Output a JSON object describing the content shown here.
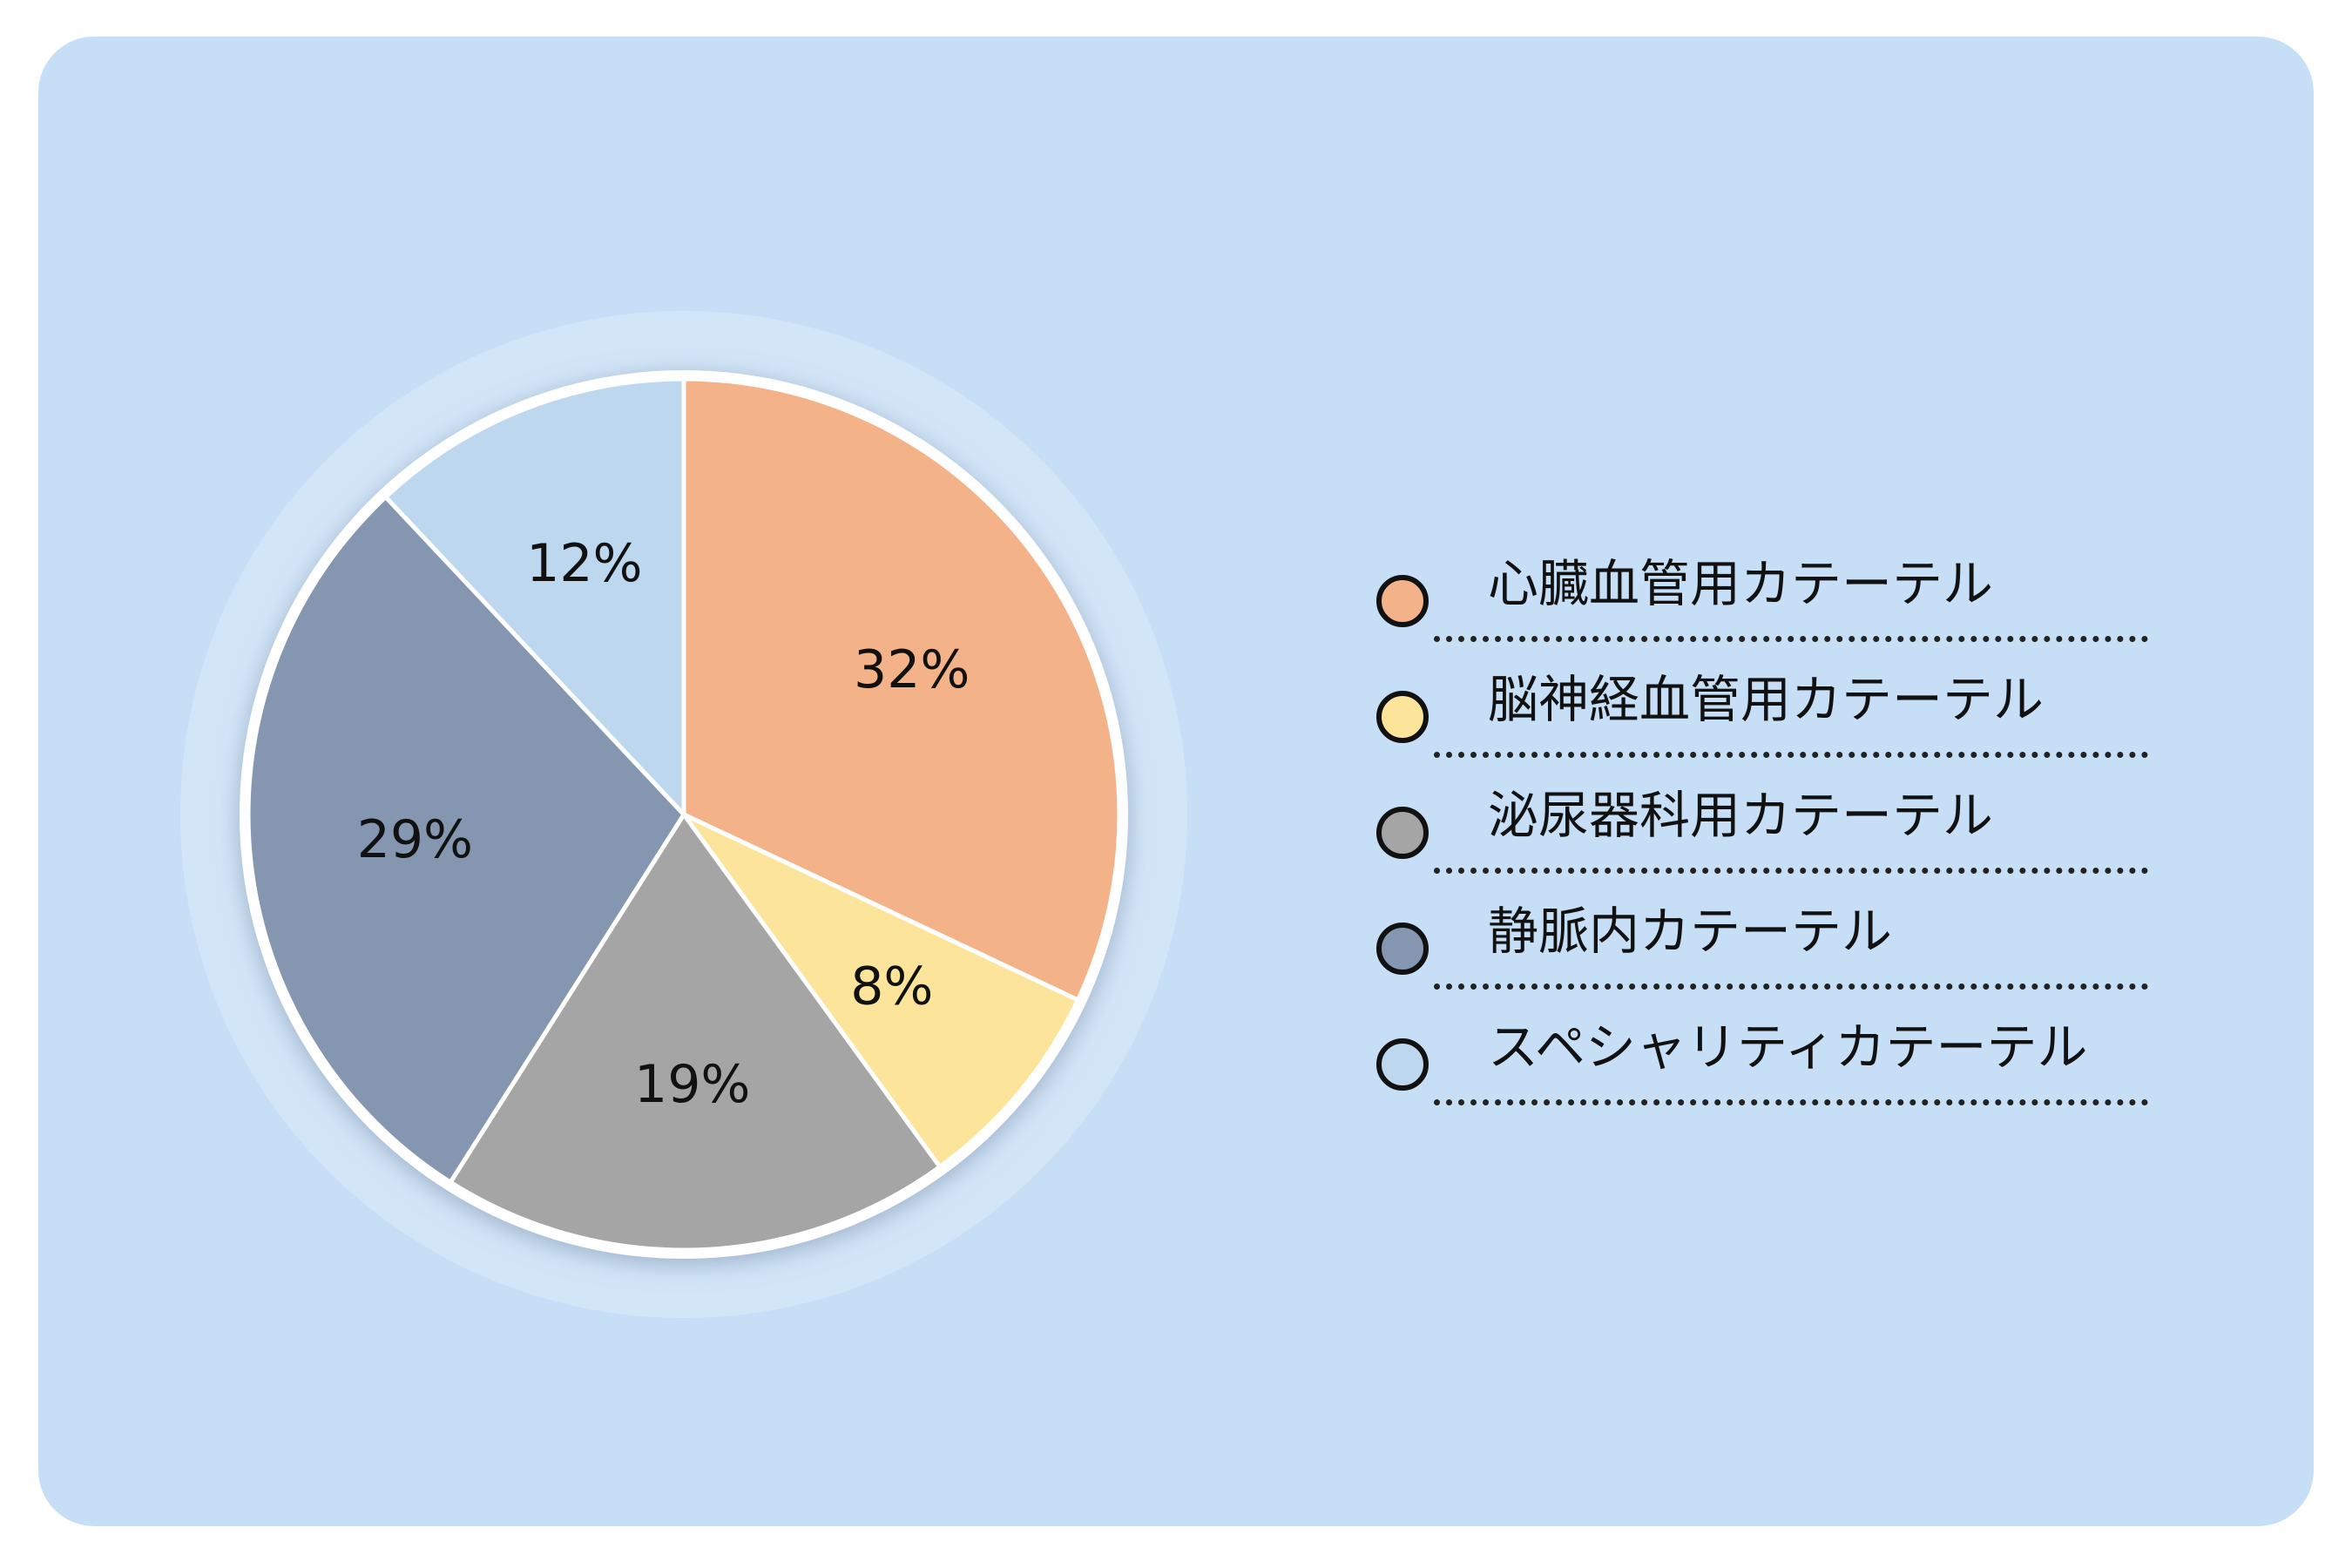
{
  "chart_data": {
    "type": "pie",
    "categories": [
      "心臓血管用カテーテル",
      "脳神経血管用カテーテル",
      "泌尿器科用カテーテル",
      "静脈内カテーテル",
      "スペシャリティカテーテル"
    ],
    "values": [
      32,
      8,
      19,
      29,
      12
    ],
    "labels": [
      "32%",
      "8%",
      "19%",
      "29%",
      "12%"
    ],
    "colors": [
      "#f3b287",
      "#fde49b",
      "#a5a5a5",
      "#8496b0",
      "#bdd7ee"
    ],
    "unit": "%",
    "start_angle": "12 o'clock",
    "direction": "clockwise",
    "legend_position": "right"
  },
  "colors": {
    "background": "#c6dff6",
    "slice_border": "#ffffff",
    "legend_marker_border": "#111111"
  }
}
